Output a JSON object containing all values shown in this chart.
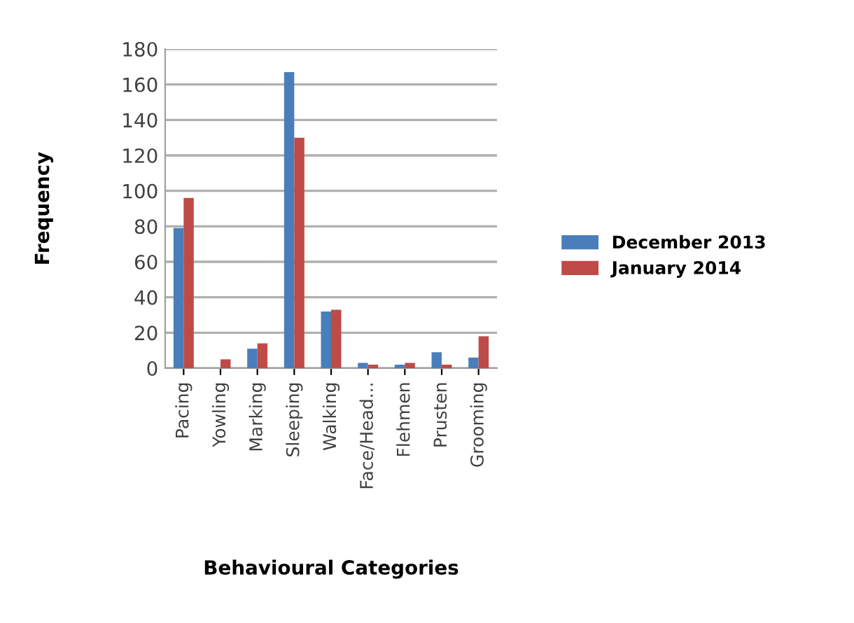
{
  "chart_data": {
    "type": "bar",
    "xlabel": "Behavioural Categories",
    "ylabel": "Frequency",
    "categories": [
      "Pacing",
      "Yowling",
      "Marking",
      "Sleeping",
      "Walking",
      "Face/Head...",
      "Flehmen",
      "Prusten",
      "Grooming"
    ],
    "series": [
      {
        "name": "December 2013",
        "color": "#4a7ebb",
        "values": [
          79,
          0,
          11,
          167,
          32,
          3,
          2,
          9,
          6
        ]
      },
      {
        "name": "January 2014",
        "color": "#be4b48",
        "values": [
          96,
          5,
          14,
          130,
          33,
          2,
          3,
          2,
          18
        ]
      }
    ],
    "ylim": [
      0,
      180
    ],
    "yticks": [
      0,
      20,
      40,
      60,
      80,
      100,
      120,
      140,
      160,
      180
    ],
    "grid": "y",
    "legend": "right"
  }
}
